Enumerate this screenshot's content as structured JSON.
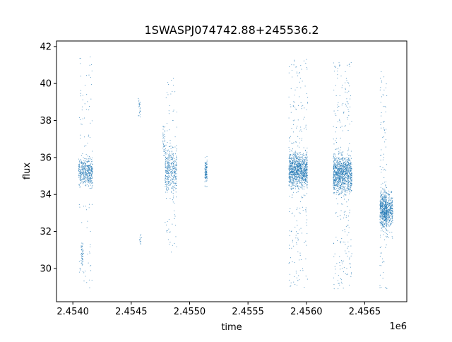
{
  "chart_data": {
    "type": "scatter",
    "title": "1SWASPJ074742.88+245536.2",
    "xlabel": "time",
    "ylabel": "flux",
    "x_offset_label": "1e6",
    "xlim": [
      2.45386,
      2.45686
    ],
    "ylim": [
      28.2,
      42.3
    ],
    "x_ticks": [
      2.454,
      2.4545,
      2.455,
      2.4555,
      2.456,
      2.4565
    ],
    "x_tick_labels": [
      "2.4540",
      "2.4545",
      "2.4550",
      "2.4555",
      "2.4560",
      "2.4565"
    ],
    "y_ticks": [
      30,
      32,
      34,
      36,
      38,
      40,
      42
    ],
    "y_tick_labels": [
      "30",
      "32",
      "34",
      "36",
      "38",
      "40",
      "42"
    ],
    "grid": false,
    "legend": false,
    "marker_color": "#1f77b4",
    "clusters": [
      {
        "x_center": 2.45411,
        "x_span": 0.00012,
        "flux_center": 35.2,
        "flux_spread": 0.35,
        "outlier_flux_range": [
          28.9,
          41.5
        ],
        "points": 520
      },
      {
        "x_center": 2.45408,
        "x_span": 2e-05,
        "flux_center": 30.8,
        "flux_spread": 0.3,
        "outlier_flux_range": [
          30.3,
          31.3
        ],
        "points": 40
      },
      {
        "x_center": 2.45457,
        "x_span": 2e-05,
        "flux_center": 38.7,
        "flux_spread": 0.3,
        "outlier_flux_range": [
          38.2,
          39.2
        ],
        "points": 25
      },
      {
        "x_center": 2.45458,
        "x_span": 2e-05,
        "flux_center": 31.6,
        "flux_spread": 0.2,
        "outlier_flux_range": [
          31.2,
          31.9
        ],
        "points": 14
      },
      {
        "x_center": 2.45478,
        "x_span": 2e-05,
        "flux_center": 36.9,
        "flux_spread": 0.4,
        "outlier_flux_range": [
          36.0,
          37.7
        ],
        "points": 40
      },
      {
        "x_center": 2.45484,
        "x_span": 0.0001,
        "flux_center": 35.3,
        "flux_spread": 0.6,
        "outlier_flux_range": [
          30.8,
          40.3
        ],
        "points": 420
      },
      {
        "x_center": 2.45514,
        "x_span": 2e-05,
        "flux_center": 35.2,
        "flux_spread": 0.3,
        "outlier_flux_range": [
          34.6,
          36.1
        ],
        "points": 110
      },
      {
        "x_center": 2.45593,
        "x_span": 0.00016,
        "flux_center": 35.3,
        "flux_spread": 0.45,
        "outlier_flux_range": [
          28.9,
          41.4
        ],
        "points": 1200
      },
      {
        "x_center": 2.45631,
        "x_span": 0.00016,
        "flux_center": 35.1,
        "flux_spread": 0.5,
        "outlier_flux_range": [
          28.9,
          41.2
        ],
        "points": 1200
      },
      {
        "x_center": 2.45666,
        "x_span": 6e-05,
        "flux_center": 33.2,
        "flux_spread": 0.5,
        "outlier_flux_range": [
          28.9,
          40.9
        ],
        "points": 560
      },
      {
        "x_center": 2.45671,
        "x_span": 6e-05,
        "flux_center": 33.1,
        "flux_spread": 0.4,
        "outlier_flux_range": [
          31.6,
          34.2
        ],
        "points": 300
      }
    ]
  }
}
